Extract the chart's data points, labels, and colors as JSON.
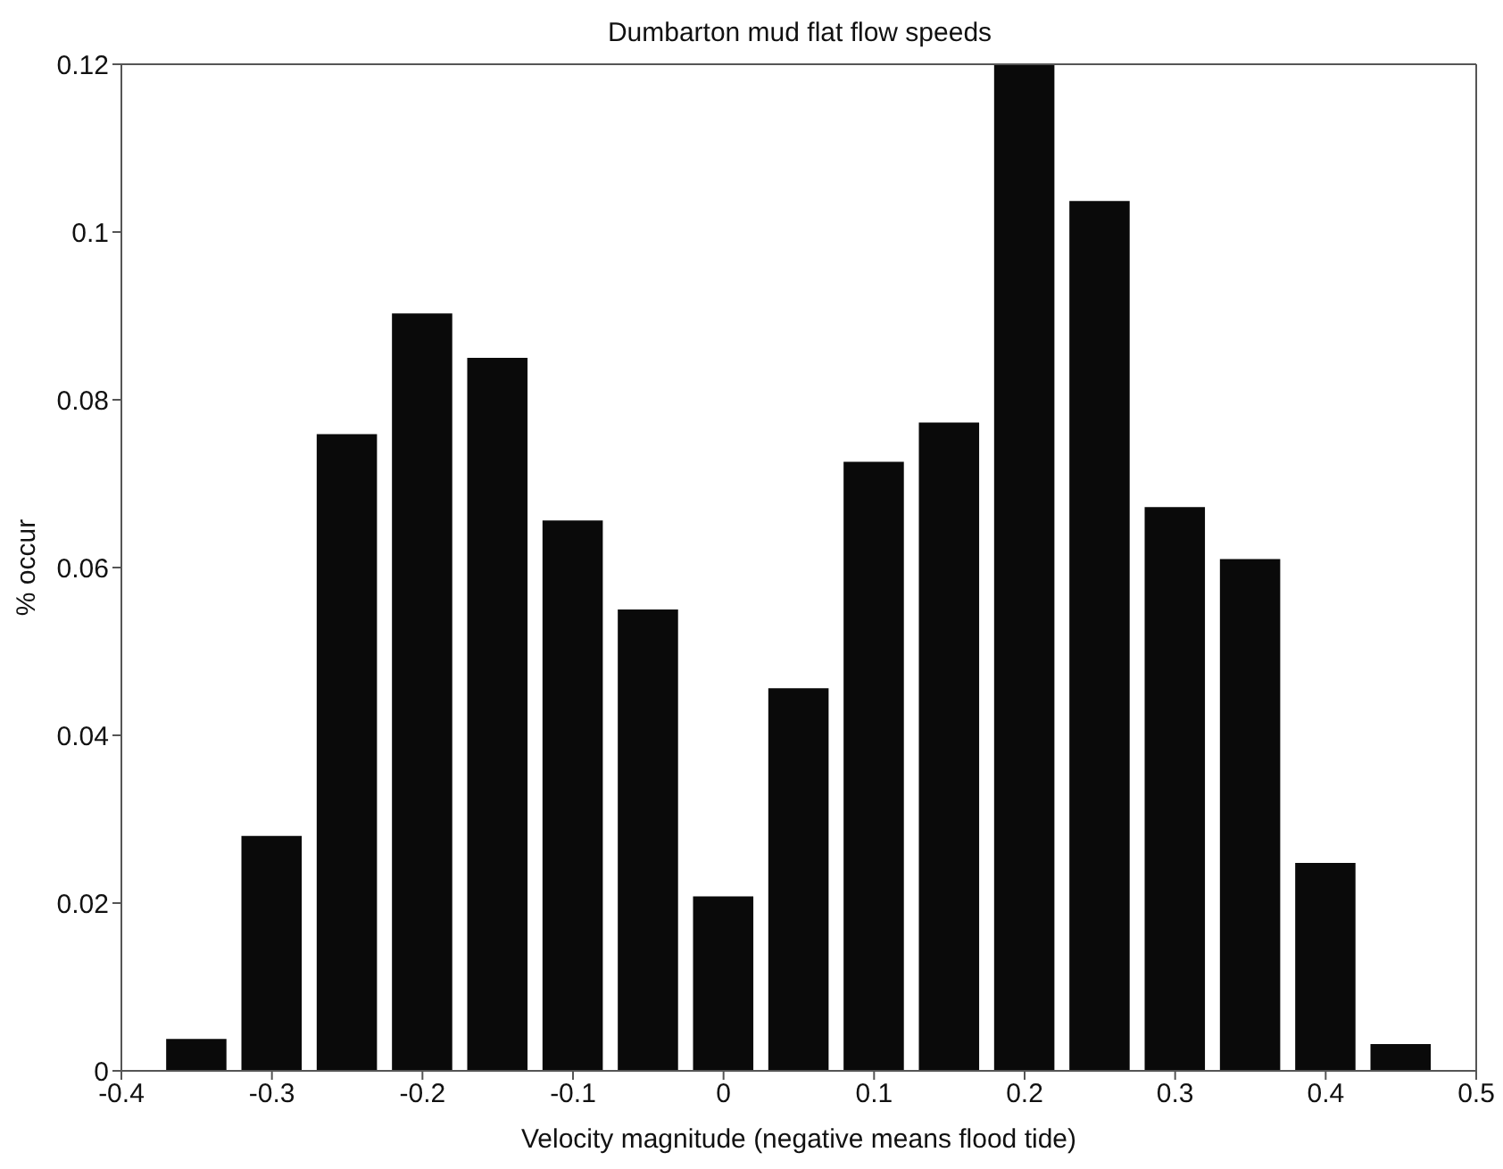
{
  "chart_data": {
    "type": "bar",
    "title": "Dumbarton mud flat flow speeds",
    "xlabel": "Velocity magnitude (negative means flood tide)",
    "ylabel": "% occur",
    "x": [
      -0.35,
      -0.3,
      -0.25,
      -0.2,
      -0.15,
      -0.1,
      -0.05,
      0,
      0.05,
      0.1,
      0.15,
      0.2,
      0.25,
      0.3,
      0.35,
      0.4,
      0.45
    ],
    "values": [
      0.0038,
      0.028,
      0.0759,
      0.0903,
      0.085,
      0.0656,
      0.055,
      0.0208,
      0.0456,
      0.0726,
      0.0773,
      0.12,
      0.1037,
      0.0672,
      0.061,
      0.0248,
      0.0032
    ],
    "color": "#0a0a0a",
    "xlim": [
      -0.4,
      0.5
    ],
    "xticks": [
      -0.4,
      -0.3,
      -0.2,
      -0.1,
      0,
      0.1,
      0.2,
      0.3,
      0.4,
      0.5
    ],
    "ylim": [
      0,
      0.12
    ],
    "yticks": [
      0,
      0.02,
      0.04,
      0.06,
      0.08,
      0.1,
      0.12
    ],
    "grid": false
  }
}
